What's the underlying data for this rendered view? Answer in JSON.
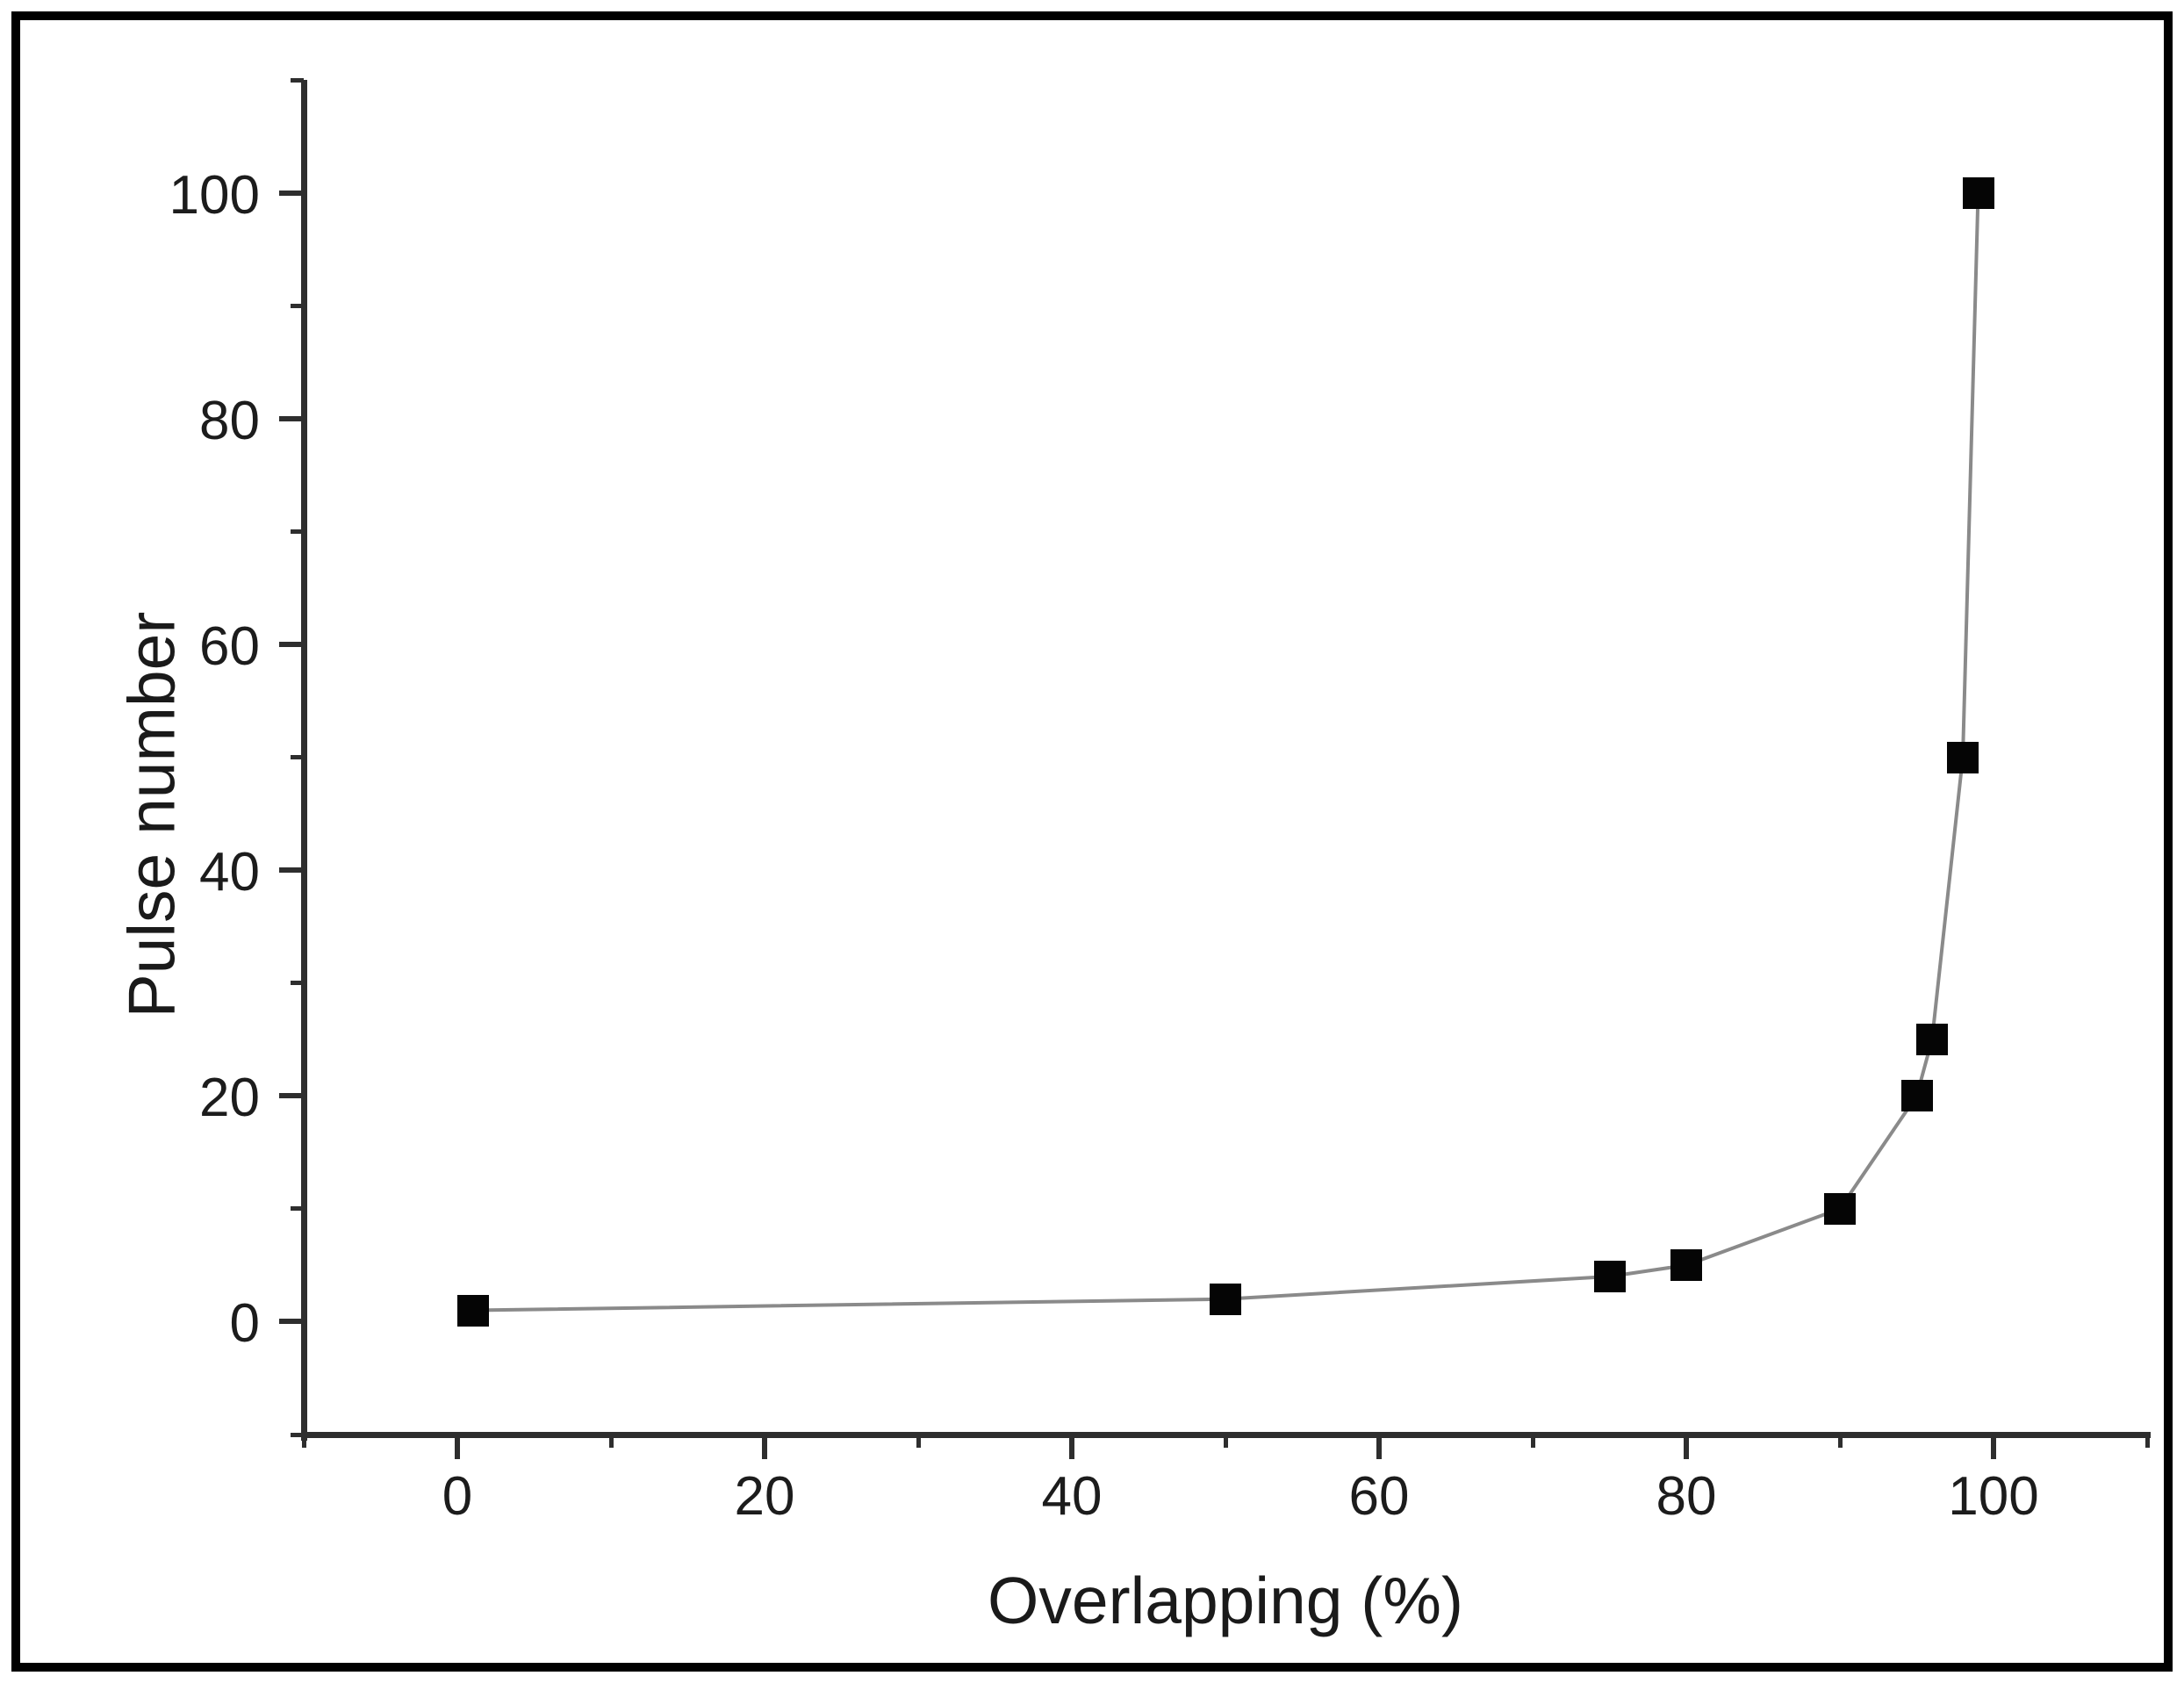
{
  "figure": {
    "background": "#ffffff",
    "frame_color": "#000000"
  },
  "chart_data": {
    "type": "line",
    "title": "",
    "xlabel": "Overlapping (%)",
    "ylabel": "Pulse number",
    "points": [
      [
        1,
        1
      ],
      [
        50,
        2
      ],
      [
        75,
        4
      ],
      [
        80,
        5
      ],
      [
        90,
        10
      ],
      [
        95,
        20
      ],
      [
        96,
        25
      ],
      [
        98,
        50
      ],
      [
        99,
        100
      ]
    ],
    "xlim": [
      -10,
      110
    ],
    "ylim": [
      -10,
      110
    ],
    "x_major_ticks": [
      0,
      20,
      40,
      60,
      80,
      100
    ],
    "y_major_ticks": [
      0,
      20,
      40,
      60,
      80,
      100
    ],
    "x_minor_ticks": [
      -10,
      10,
      30,
      50,
      70,
      90,
      110
    ],
    "y_minor_ticks": [
      -10,
      10,
      30,
      50,
      70,
      90,
      110
    ],
    "x_tick_labels": [
      "0",
      "20",
      "40",
      "60",
      "80",
      "100"
    ],
    "y_tick_labels": [
      "0",
      "20",
      "40",
      "60",
      "80",
      "100"
    ],
    "grid": false,
    "legend": false,
    "marker_shape": "square",
    "marker_color": "#050505",
    "line_color": "#8a8a8a",
    "axis_color": "#2e2e2e",
    "text_color": "#1c1c1c"
  }
}
